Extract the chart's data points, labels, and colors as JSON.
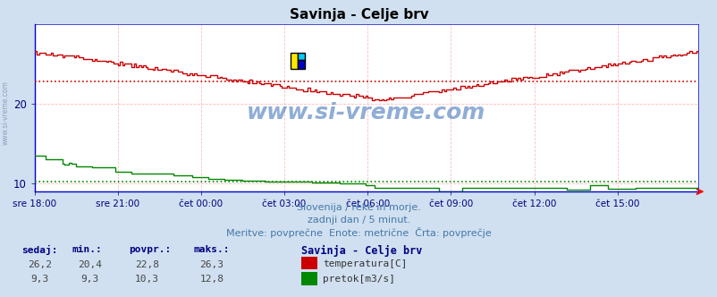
{
  "title": "Savinja - Celje brv",
  "title_color": "#000000",
  "bg_color": "#d0e0f0",
  "plot_bg_color": "#ffffff",
  "grid_color": "#ffaaaa",
  "xlabel_color": "#000080",
  "n_points": 288,
  "temp_color": "#cc0000",
  "flow_color": "#008800",
  "avg_temp_color": "#cc0000",
  "avg_flow_color": "#008800",
  "avg_temp": 22.8,
  "avg_flow": 10.3,
  "ymin": 9.0,
  "ymax": 30.0,
  "yticks": [
    10,
    20
  ],
  "watermark": "www.si-vreme.com",
  "watermark_color": "#4477bb",
  "watermark_alpha": 0.6,
  "subtitle1": "Slovenija / reke in morje.",
  "subtitle2": "zadnji dan / 5 minut.",
  "subtitle3": "Meritve: povprečne  Enote: metrične  Črta: povprečje",
  "subtitle_color": "#4477aa",
  "footer_label_color": "#000080",
  "footer_value_color": "#444444",
  "sedaj_temp": "26,2",
  "min_temp": "20,4",
  "povpr_temp": "22,8",
  "maks_temp": "26,3",
  "sedaj_flow": "9,3",
  "min_flow": "9,3",
  "povpr_flow": "10,3",
  "maks_flow": "12,8",
  "legend_title": "Savinja - Celje brv",
  "legend_temp_label": "temperatura[C]",
  "legend_flow_label": "pretok[m3/s]",
  "x_tick_labels": [
    "sre 18:00",
    "sre 21:00",
    "čet 00:00",
    "čet 03:00",
    "čet 06:00",
    "čet 09:00",
    "čet 12:00",
    "čet 15:00"
  ],
  "x_tick_positions": [
    0,
    36,
    72,
    108,
    144,
    180,
    216,
    252
  ],
  "spine_color": "#0000cc",
  "left_spine_color": "#0000cc"
}
